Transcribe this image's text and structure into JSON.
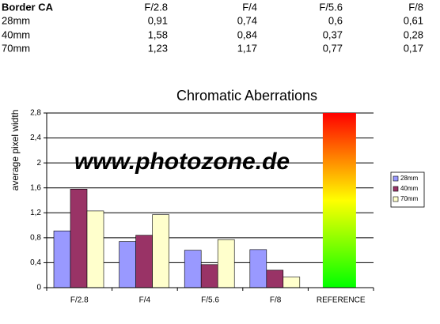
{
  "table": {
    "title": "Border CA"
  },
  "chart_data": {
    "type": "bar",
    "title": "Chromatic Aberrations",
    "y_label": "average pixel width",
    "watermark": "www.photozone.de",
    "categories": [
      "F/2.8",
      "F/4",
      "F/5.6",
      "F/8",
      "REFERENCE"
    ],
    "series": [
      {
        "name": "28mm",
        "color": "#9999ff",
        "values": [
          0.91,
          0.74,
          0.6,
          0.61,
          null
        ],
        "value_labels": [
          "0,91",
          "0,74",
          "0,6",
          "0,61",
          null
        ]
      },
      {
        "name": "40mm",
        "color": "#993366",
        "values": [
          1.58,
          0.84,
          0.37,
          0.28,
          null
        ],
        "value_labels": [
          "1,58",
          "0,84",
          "0,37",
          "0,28",
          null
        ]
      },
      {
        "name": "70mm",
        "color": "#ffffcc",
        "values": [
          1.23,
          1.17,
          0.77,
          0.17,
          null
        ],
        "value_labels": [
          "1,23",
          "1,17",
          "0,77",
          "0,17",
          null
        ]
      }
    ],
    "reference": {
      "value": 2.8,
      "colors": [
        "#00ff00",
        "#ffff00",
        "#ff0000"
      ]
    },
    "ylim": [
      0,
      2.8
    ],
    "yticks": [
      0,
      {
        "value": 0.4,
        "label": "0,4"
      },
      {
        "value": 0.8,
        "label": "0,8"
      },
      {
        "value": 1.2,
        "label": "1,2"
      },
      {
        "value": 1.6,
        "label": "1,6"
      },
      2,
      {
        "value": 2.4,
        "label": "2,4"
      },
      {
        "value": 2.8,
        "label": "2,8"
      }
    ],
    "grid": true,
    "legend": "right"
  }
}
